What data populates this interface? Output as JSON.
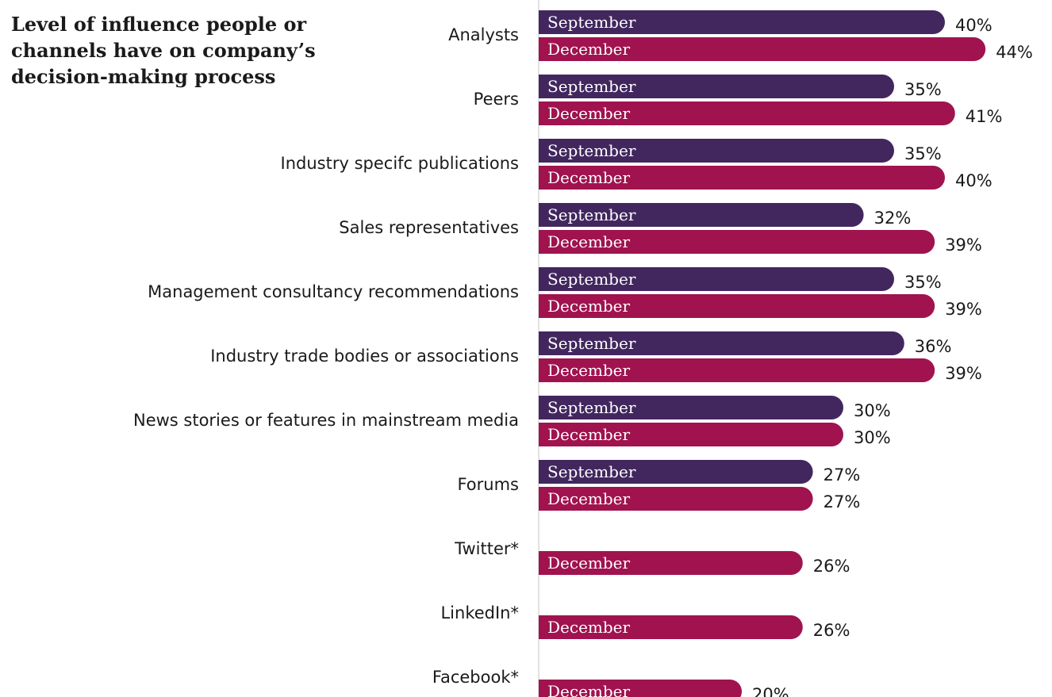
{
  "title_lines": [
    "Level of influence people or",
    "channels have on company’s",
    "decision-making process"
  ],
  "colors": {
    "September": "#42275f",
    "December": "#a0134f",
    "axis": "#cfcfcf",
    "text": "#1a1a1a"
  },
  "chart_data": {
    "type": "bar",
    "orientation": "horizontal",
    "title": "Level of influence people or channels have on company’s decision-making process",
    "categories": [
      "Analysts",
      "Peers",
      "Industry specifc publications",
      "Sales  representatives",
      "Management consultancy recommendations",
      "Industry trade bodies or associations",
      "News stories or features in mainstream media",
      "Forums",
      "Twitter*",
      "LinkedIn*",
      "Facebook*"
    ],
    "series": [
      {
        "name": "September",
        "values": [
          40,
          35,
          35,
          32,
          35,
          36,
          30,
          27,
          null,
          null,
          null
        ],
        "labels": [
          "40%",
          "35%",
          "35%",
          "32%",
          "35%",
          "36%",
          "30%",
          "27%",
          null,
          null,
          null
        ]
      },
      {
        "name": "December",
        "values": [
          44,
          41,
          40,
          39,
          39,
          39,
          30,
          27,
          26,
          26,
          20
        ],
        "labels": [
          "44%",
          "41%",
          "40%",
          "39%",
          "39%",
          "39%",
          "30%",
          "27%",
          "26%",
          "26%",
          "20%"
        ]
      }
    ],
    "xlim": [
      0,
      44
    ],
    "grid": false,
    "legend": "none"
  }
}
